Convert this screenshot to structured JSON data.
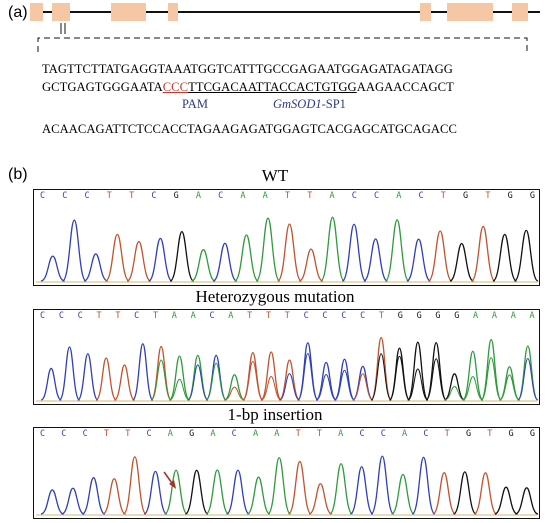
{
  "panel_a": {
    "label": "(a)",
    "seq_line1": "TAGTTCTTATGAGGTAAATGGTCATTTGCCGAGAATGGAGATAGATAGG",
    "seq_line2_pre": "GCTGAGTGGGAATA",
    "seq_line2_pam": "CCC",
    "seq_line2_target": "TTCGACAATTACCACTGTGG",
    "seq_line2_post": "AAGAACCAGCT",
    "seq_line3": "ACAACAGATTCTCCACCTAGAAGAGATGGAGTCACGAGCATGCAGACC",
    "pam_label": "PAM",
    "target_gene": "GmSOD1",
    "target_suffix": "-SP1",
    "colors": {
      "exon": "#f5c7a4",
      "pam": "#c0392b",
      "annot": "#2c3a84"
    }
  },
  "panel_b": {
    "label": "(b)",
    "traces": [
      {
        "title": "WT",
        "bases": [
          "C",
          "C",
          "C",
          "T",
          "T",
          "C",
          "G",
          "A",
          "C",
          "A",
          "A",
          "T",
          "T",
          "A",
          "C",
          "C",
          "A",
          "C",
          "T",
          "G",
          "T",
          "G",
          "G"
        ]
      },
      {
        "title": "Heterozygous mutation",
        "bases": [
          "C",
          "C",
          "C",
          "T",
          "T",
          "C",
          "T",
          "A",
          "A",
          "C",
          "A",
          "T",
          "T",
          "T",
          "C",
          "C",
          "C",
          "C",
          "T",
          "G",
          "G",
          "G",
          "G",
          "A",
          "A",
          "A",
          "A"
        ]
      },
      {
        "title": "1-bp insertion",
        "bases": [
          "C",
          "C",
          "C",
          "T",
          "T",
          "C",
          "A",
          "G",
          "A",
          "C",
          "A",
          "A",
          "T",
          "T",
          "A",
          "C",
          "C",
          "A",
          "C",
          "T",
          "G",
          "T",
          "G",
          "G"
        ]
      }
    ],
    "base_colors": {
      "A": "#2e9b3c",
      "C": "#2f3fb8",
      "G": "#111111",
      "T": "#c2532d"
    }
  }
}
